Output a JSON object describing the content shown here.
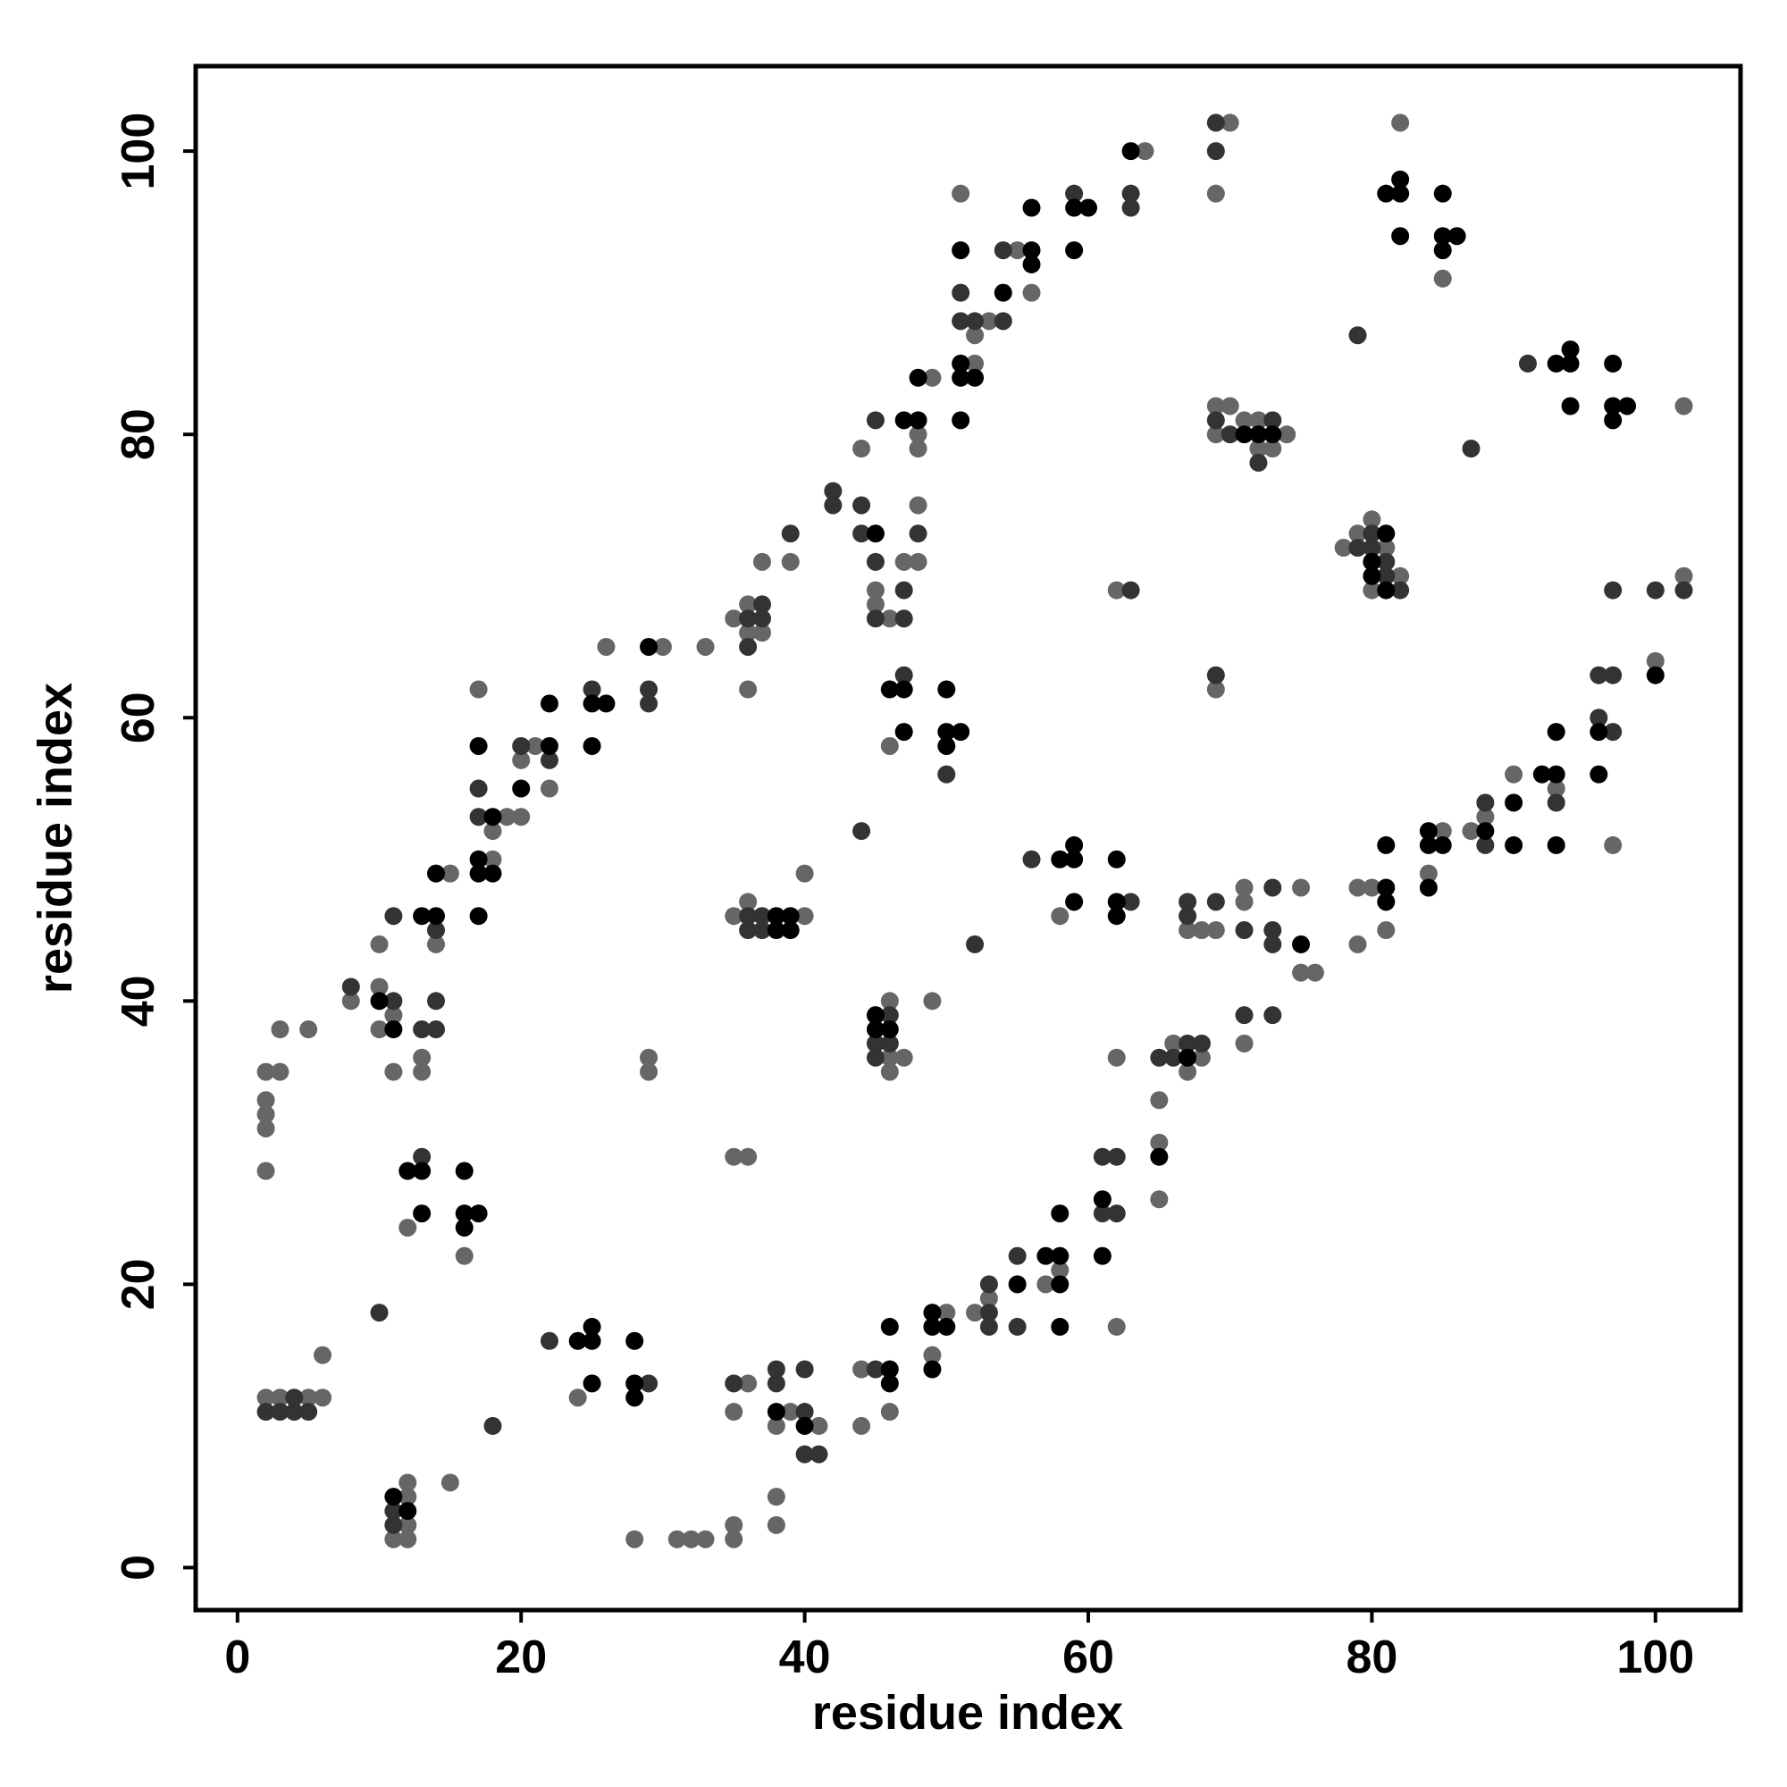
{
  "chart_data": {
    "type": "scatter",
    "x_label": "residue index",
    "y_label": "residue index",
    "xlim": [
      -2.95,
      106
    ],
    "ylim": [
      -3,
      106
    ],
    "xticks": [
      0,
      20,
      40,
      60,
      80,
      100
    ],
    "yticks": [
      0,
      20,
      40,
      60,
      80,
      100
    ],
    "series": [
      {
        "color": "#666666",
        "x": [
          2,
          2,
          2,
          2,
          2,
          3,
          3,
          5,
          2,
          3,
          5,
          6,
          6,
          11,
          12,
          12,
          12,
          12,
          15,
          12,
          16,
          24,
          28,
          31,
          32,
          33,
          35,
          35,
          35,
          36,
          39,
          41,
          38,
          38,
          38,
          44,
          44,
          46,
          50,
          49,
          52,
          53,
          57,
          58,
          62,
          65,
          65,
          65,
          66,
          67,
          68,
          8,
          10,
          10,
          10,
          11,
          11,
          13,
          13,
          14,
          15,
          17,
          18,
          18,
          19,
          20,
          20,
          21,
          22,
          30,
          26,
          33,
          29,
          29,
          35,
          36,
          35,
          36,
          36,
          37,
          37,
          36,
          39,
          35,
          36,
          40,
          40,
          44,
          45,
          45,
          46,
          47,
          48,
          48,
          48,
          48,
          49,
          46,
          46,
          46,
          46,
          47,
          49,
          51,
          52,
          52,
          53,
          55,
          56,
          64,
          69,
          70,
          58,
          67,
          68,
          69,
          71,
          71,
          75,
          75,
          76,
          71,
          62,
          62,
          69,
          69,
          69,
          70,
          71,
          72,
          72,
          73,
          74,
          78,
          79,
          80,
          80,
          81,
          82,
          79,
          79,
          80,
          81,
          84,
          85,
          87,
          88,
          90,
          93,
          97,
          100,
          102,
          82,
          85,
          102
        ],
        "y": [
          28,
          31,
          32,
          33,
          35,
          35,
          38,
          38,
          12,
          12,
          12,
          12,
          15,
          2,
          2,
          3,
          5,
          6,
          6,
          24,
          22,
          12,
          2,
          2,
          2,
          2,
          2,
          3,
          11,
          13,
          11,
          10,
          10,
          5,
          3,
          14,
          10,
          11,
          18,
          15,
          18,
          19,
          20,
          21,
          17,
          26,
          30,
          33,
          37,
          35,
          36,
          40,
          41,
          38,
          44,
          39,
          35,
          36,
          35,
          44,
          49,
          62,
          52,
          50,
          53,
          53,
          57,
          58,
          55,
          65,
          65,
          65,
          35,
          36,
          29,
          29,
          67,
          68,
          66,
          66,
          71,
          62,
          71,
          46,
          47,
          46,
          49,
          79,
          69,
          68,
          67,
          71,
          71,
          75,
          79,
          80,
          84,
          58,
          36,
          35,
          40,
          36,
          40,
          97,
          85,
          87,
          88,
          93,
          90,
          100,
          97,
          102,
          46,
          45,
          45,
          45,
          48,
          47,
          48,
          42,
          42,
          37,
          69,
          36,
          62,
          82,
          80,
          82,
          81,
          81,
          79,
          79,
          80,
          72,
          73,
          74,
          69,
          72,
          70,
          44,
          48,
          48,
          45,
          49,
          52,
          52,
          53,
          56,
          55,
          51,
          64,
          70,
          102,
          91,
          82
        ]
      },
      {
        "color": "#333333",
        "x": [
          2,
          3,
          4,
          4,
          5,
          10,
          11,
          11,
          13,
          18,
          22,
          29,
          35,
          38,
          38,
          40,
          40,
          40,
          41,
          45,
          53,
          53,
          53,
          55,
          55,
          61,
          62,
          61,
          62,
          65,
          66,
          67,
          68,
          8,
          11,
          11,
          13,
          14,
          14,
          14,
          17,
          17,
          20,
          22,
          25,
          29,
          29,
          36,
          36,
          37,
          37,
          39,
          36,
          36,
          37,
          37,
          42,
          42,
          44,
          44,
          45,
          45,
          45,
          47,
          47,
          48,
          44,
          47,
          50,
          45,
          45,
          46,
          46,
          52,
          51,
          51,
          52,
          54,
          54,
          59,
          63,
          63,
          69,
          69,
          56,
          63,
          67,
          67,
          69,
          71,
          73,
          73,
          73,
          71,
          73,
          63,
          69,
          69,
          70,
          72,
          73,
          79,
          80,
          80,
          81,
          81,
          82,
          79,
          88,
          88,
          93,
          96,
          96,
          97,
          97,
          97,
          100,
          102,
          91,
          87
        ],
        "y": [
          11,
          11,
          11,
          12,
          11,
          18,
          3,
          4,
          29,
          10,
          16,
          13,
          13,
          14,
          13,
          11,
          14,
          8,
          8,
          14,
          20,
          18,
          17,
          22,
          17,
          25,
          25,
          29,
          29,
          36,
          36,
          37,
          37,
          41,
          40,
          46,
          38,
          38,
          40,
          45,
          53,
          55,
          58,
          57,
          62,
          62,
          61,
          67,
          65,
          68,
          67,
          73,
          46,
          45,
          46,
          45,
          76,
          75,
          75,
          73,
          71,
          67,
          81,
          67,
          69,
          73,
          52,
          63,
          56,
          37,
          36,
          39,
          37,
          44,
          88,
          90,
          88,
          88,
          93,
          97,
          96,
          97,
          100,
          102,
          50,
          47,
          47,
          46,
          47,
          45,
          48,
          45,
          44,
          39,
          39,
          69,
          63,
          81,
          80,
          78,
          81,
          72,
          73,
          72,
          71,
          70,
          69,
          87,
          54,
          51,
          54,
          60,
          63,
          63,
          59,
          69,
          69,
          69,
          85,
          79
        ]
      },
      {
        "color": "#000000",
        "x": [
          11,
          12,
          12,
          13,
          13,
          16,
          16,
          16,
          17,
          24,
          25,
          25,
          25,
          28,
          28,
          28,
          38,
          40,
          46,
          46,
          46,
          49,
          49,
          50,
          49,
          55,
          57,
          58,
          58,
          58,
          58,
          61,
          61,
          65,
          67,
          10,
          11,
          13,
          14,
          14,
          17,
          17,
          17,
          17,
          18,
          18,
          20,
          22,
          22,
          25,
          26,
          25,
          29,
          38,
          38,
          39,
          39,
          45,
          47,
          48,
          48,
          46,
          47,
          47,
          50,
          50,
          50,
          51,
          45,
          45,
          46,
          51,
          51,
          51,
          51,
          52,
          54,
          56,
          56,
          56,
          59,
          59,
          60,
          63,
          58,
          59,
          59,
          59,
          62,
          62,
          62,
          75,
          71,
          72,
          73,
          80,
          80,
          81,
          81,
          81,
          81,
          81,
          84,
          84,
          84,
          85,
          88,
          90,
          90,
          92,
          93,
          93,
          93,
          96,
          96,
          100,
          81,
          82,
          82,
          82,
          85,
          85,
          85,
          86,
          93,
          94,
          94,
          94,
          97,
          97,
          97,
          98
        ],
        "y": [
          5,
          4,
          28,
          28,
          25,
          28,
          25,
          24,
          25,
          16,
          16,
          17,
          13,
          16,
          13,
          12,
          11,
          10,
          17,
          14,
          13,
          18,
          17,
          17,
          14,
          20,
          22,
          22,
          20,
          25,
          17,
          26,
          22,
          29,
          36,
          40,
          38,
          46,
          46,
          49,
          46,
          49,
          50,
          58,
          53,
          49,
          55,
          58,
          61,
          61,
          61,
          58,
          65,
          46,
          45,
          46,
          45,
          73,
          81,
          81,
          84,
          62,
          62,
          59,
          62,
          59,
          58,
          59,
          39,
          38,
          38,
          81,
          84,
          85,
          93,
          84,
          90,
          93,
          92,
          96,
          93,
          96,
          96,
          100,
          50,
          50,
          51,
          47,
          50,
          47,
          46,
          44,
          80,
          80,
          80,
          71,
          70,
          73,
          69,
          48,
          47,
          51,
          52,
          51,
          48,
          51,
          52,
          54,
          51,
          56,
          56,
          51,
          59,
          56,
          59,
          63,
          97,
          97,
          98,
          94,
          97,
          94,
          93,
          94,
          85,
          85,
          86,
          82,
          85,
          82,
          81,
          82
        ]
      }
    ]
  }
}
